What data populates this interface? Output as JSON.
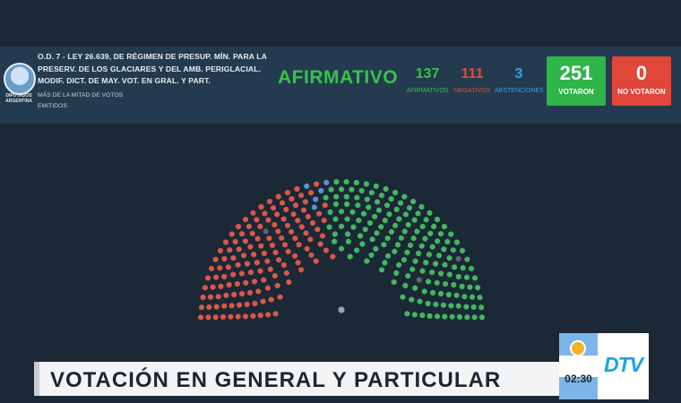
{
  "header": {
    "logo_label": "DIPUTADOS ARGENTINA",
    "title": "O.D. 7 - LEY 26.639, DE RÉGIMEN DE PRESUP. MÍN. PARA LA PRESERV. DE LOS GLACIARES Y DEL AMB. PERIGLACIAL. MODIF. DICT. DE MAY. VOT. EN GRAL. Y PART.",
    "subtitle": "MÁS DE LA MITAD DE VOTOS EMITIDOS",
    "result": "AFIRMATIVO"
  },
  "stats": {
    "afirmativos": {
      "value": "137",
      "label": "AFIRMATIVOS",
      "color": "#37c24d"
    },
    "negativos": {
      "value": "111",
      "label": "NEGATIVOS",
      "color": "#e84a3a"
    },
    "abstenciones": {
      "value": "3",
      "label": "ABSTENCIONES",
      "color": "#3a9fe6"
    }
  },
  "totals": {
    "votaron": {
      "value": "251",
      "label": "VOTARON",
      "color": "#2fb44a"
    },
    "no_votaron": {
      "value": "0",
      "label": "NO VOTARON",
      "color": "#e0463a"
    }
  },
  "chamber_colors": {
    "afirmativo": "#43b760",
    "negativo": "#d9584a",
    "abstencion": "#5f8fd6",
    "ausente": "#5b6670"
  },
  "ticker": {
    "text": "VOTACIÓN EN GENERAL Y PARTICULAR"
  },
  "bug": {
    "time": "02:30",
    "channel_logo": "DTV"
  }
}
